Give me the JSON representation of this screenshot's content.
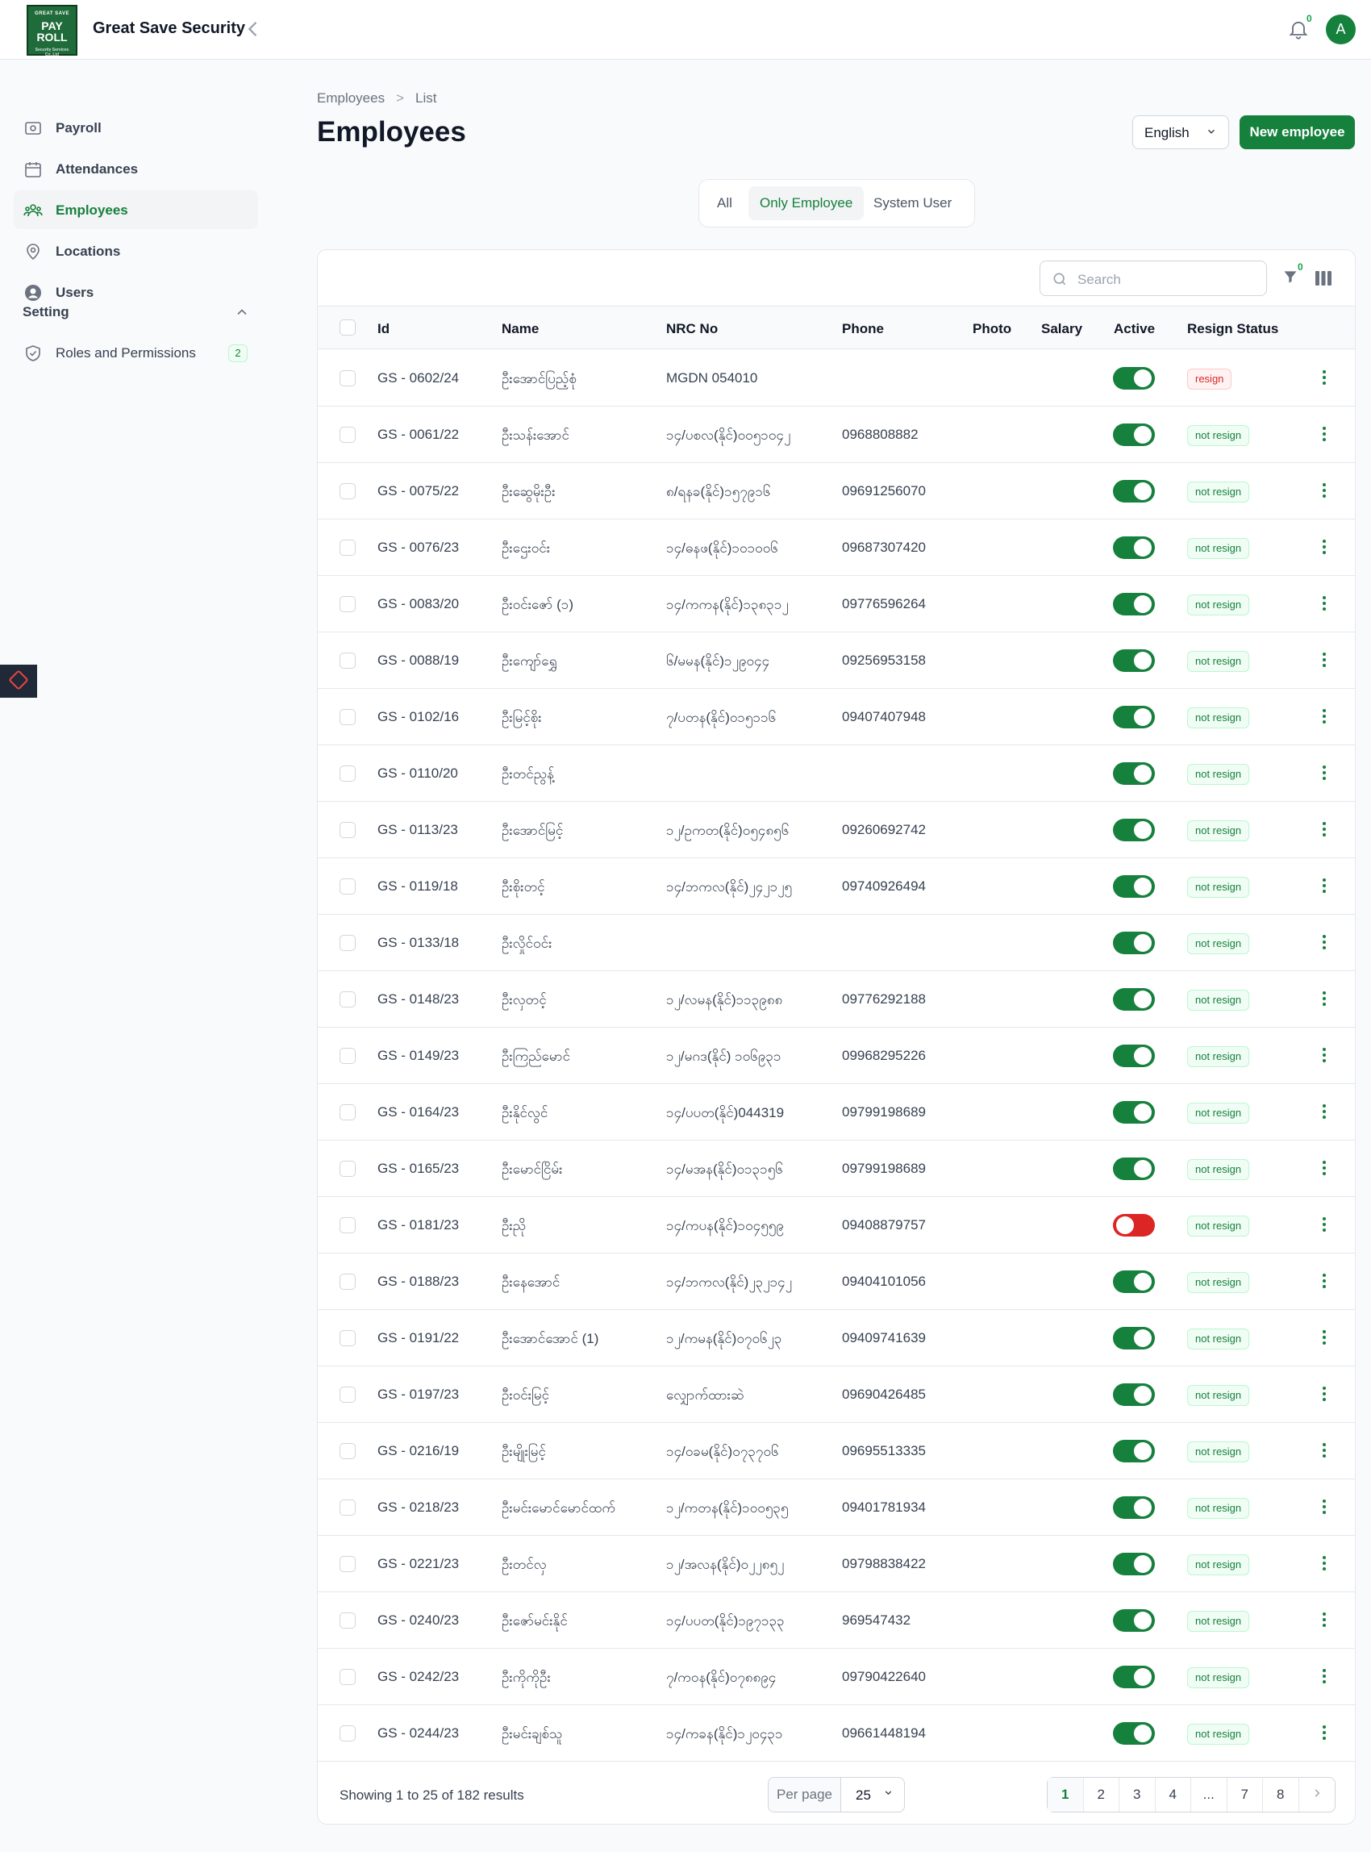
{
  "app": {
    "logo_lines": [
      "GREAT SAVE",
      "PAY",
      "ROLL",
      "Security Services Co.,Ltd"
    ],
    "brand": "Great Save Security",
    "notifications_count": "0",
    "avatar_initial": "A"
  },
  "sidebar": {
    "items": [
      {
        "label": "Payroll",
        "icon": "payroll-icon"
      },
      {
        "label": "Attendances",
        "icon": "calendar-icon"
      },
      {
        "label": "Employees",
        "icon": "users-icon",
        "active": true
      },
      {
        "label": "Locations",
        "icon": "map-pin-icon"
      },
      {
        "label": "Users",
        "icon": "user-circle-icon"
      }
    ],
    "group_label": "Setting",
    "group_items": [
      {
        "label": "Roles and Permissions",
        "icon": "shield-check-icon",
        "badge": "2"
      }
    ]
  },
  "breadcrumb": {
    "items": [
      "Employees",
      "List"
    ],
    "separator": ">"
  },
  "page": {
    "title": "Employees",
    "language": "English",
    "new_button": "New employee"
  },
  "tabs": {
    "items": [
      "All",
      "Only Employee",
      "System User"
    ],
    "active": "Only Employee"
  },
  "table": {
    "search_placeholder": "Search",
    "filter_count": "0",
    "columns": [
      "Id",
      "Name",
      "NRC No",
      "Phone",
      "Photo",
      "Salary",
      "Active",
      "Resign Status"
    ],
    "rows": [
      {
        "id": "GS - 0602/24",
        "name": "ဦးအောင်ပြည့်စုံ",
        "nrc": "MGDN 054010",
        "phone": "",
        "active": true,
        "status": "resign"
      },
      {
        "id": "GS - 0061/22",
        "name": "ဦးသန်းအောင်",
        "nrc": "၁၄/ပစလ(နိုင်)၀၀၅၁၀၄၂",
        "phone": "0968808882",
        "active": true,
        "status": "not resign"
      },
      {
        "id": "GS - 0075/22",
        "name": "ဦးဆွေမိုးဦး",
        "nrc": "၈/ရနခ(နိုင်)၁၅၇၉၁၆",
        "phone": "09691256070",
        "active": true,
        "status": "not resign"
      },
      {
        "id": "GS - 0076/23",
        "name": "ဦးဌေးဝင်း",
        "nrc": "၁၄/ဓနဖ(နိုင်)၁၀၁၀၀၆",
        "phone": "09687307420",
        "active": true,
        "status": "not resign"
      },
      {
        "id": "GS - 0083/20",
        "name": "ဦးဝင်းဇော် (၁)",
        "nrc": "၁၄/ကကန(နိုင်)၁၃၈၃၁၂",
        "phone": "09776596264",
        "active": true,
        "status": "not resign"
      },
      {
        "id": "GS - 0088/19",
        "name": "ဦးကျော်ရွှေ",
        "nrc": "၆/မမန(နိုင်)၁၂၉၀၄၄",
        "phone": "09256953158",
        "active": true,
        "status": "not resign"
      },
      {
        "id": "GS - 0102/16",
        "name": "ဦးမြင့်စိုး",
        "nrc": "၇/ပတန(နိုင်)၀၁၅၁၁၆",
        "phone": "09407407948",
        "active": true,
        "status": "not resign"
      },
      {
        "id": "GS - 0110/20",
        "name": "ဦးတင်ညွန့်",
        "nrc": "",
        "phone": "",
        "active": true,
        "status": "not resign"
      },
      {
        "id": "GS - 0113/23",
        "name": "ဦးအောင်မြင့်",
        "nrc": "၁၂/ဥကတ(နိုင်)၀၅၄၈၅၆",
        "phone": "09260692742",
        "active": true,
        "status": "not resign"
      },
      {
        "id": "GS - 0119/18",
        "name": "ဦးစိုးတင့်",
        "nrc": "၁၄/ဘကလ(နိုင်)၂၄၂၁၂၅",
        "phone": "09740926494",
        "active": true,
        "status": "not resign"
      },
      {
        "id": "GS - 0133/18",
        "name": "ဦးလှိုင်ဝင်း",
        "nrc": "",
        "phone": "",
        "active": true,
        "status": "not resign"
      },
      {
        "id": "GS - 0148/23",
        "name": "ဦးလှတင့်",
        "nrc": "၁၂/လမန(နိုင်)၁၁၃၉၈၈",
        "phone": "09776292188",
        "active": true,
        "status": "not resign"
      },
      {
        "id": "GS - 0149/23",
        "name": "ဦးကြည်မောင်",
        "nrc": "၁၂/မဂဒ(နိုင်) ၁၀၆၉၃၁",
        "phone": "09968295226",
        "active": true,
        "status": "not resign"
      },
      {
        "id": "GS - 0164/23",
        "name": "ဦးနိုင်လွင်",
        "nrc": "၁၄/ပပတ(နိုင်)044319",
        "phone": "09799198689",
        "active": true,
        "status": "not resign"
      },
      {
        "id": "GS - 0165/23",
        "name": "ဦးမောင်ငြိမ်း",
        "nrc": "၁၄/မအန(နိုင်)၀၁၃၁၅၆",
        "phone": "09799198689",
        "active": true,
        "status": "not resign"
      },
      {
        "id": "GS - 0181/23",
        "name": "ဦးညို",
        "nrc": "၁၄/ကပန(နိုင်)၁၀၄၅၅၉",
        "phone": "09408879757",
        "active": false,
        "status": "not resign"
      },
      {
        "id": "GS - 0188/23",
        "name": "ဦးနေအောင်",
        "nrc": "၁၄/ဘကလ(နိုင်)၂၃၂၁၄၂",
        "phone": "09404101056",
        "active": true,
        "status": "not resign"
      },
      {
        "id": "GS - 0191/22",
        "name": "ဦးအောင်အောင် (1)",
        "nrc": "၁၂/ကမန(နိုင်)၀၇၀၆၂၃",
        "phone": "09409741639",
        "active": true,
        "status": "not resign"
      },
      {
        "id": "GS - 0197/23",
        "name": "ဦးဝင်းမြင့်",
        "nrc": "လျှောက်ထားဆဲ",
        "phone": "09690426485",
        "active": true,
        "status": "not resign"
      },
      {
        "id": "GS - 0216/19",
        "name": "ဦးမျိုးမြင့်",
        "nrc": "၁၄/ဝခမ(နိုင်)၀၇၃၇၀၆",
        "phone": "09695513335",
        "active": true,
        "status": "not resign"
      },
      {
        "id": "GS - 0218/23",
        "name": "ဦးမင်းမောင်မောင်ထက်",
        "nrc": "၁၂/ကတန(နိုင်)၁၀၀၅၃၅",
        "phone": "09401781934",
        "active": true,
        "status": "not resign"
      },
      {
        "id": "GS - 0221/23",
        "name": "ဦးတင်လှ",
        "nrc": "၁၂/အလန(နိုင်)၀၂၂၈၅၂",
        "phone": "09798838422",
        "active": true,
        "status": "not resign"
      },
      {
        "id": "GS - 0240/23",
        "name": "ဦးဇော်မင်းနိုင်",
        "nrc": "၁၄/ပပတ(နိုင်)၁၉၇၁၃၃",
        "phone": "969547432",
        "active": true,
        "status": "not resign"
      },
      {
        "id": "GS - 0242/23",
        "name": "ဦးကိုကိုဦး",
        "nrc": "၇/ကဝန(နိုင်)၀၇၈၈၉၄",
        "phone": "09790422640",
        "active": true,
        "status": "not resign"
      },
      {
        "id": "GS - 0244/23",
        "name": "ဦးမင်းချစ်သူ",
        "nrc": "၁၄/ကခန(နိုင်)၁၂၀၄၃၁",
        "phone": "09661448194",
        "active": true,
        "status": "not resign"
      }
    ]
  },
  "footer": {
    "showing": "Showing 1 to 25 of 182 results",
    "per_page_label": "Per page",
    "per_page_value": "25",
    "pages": [
      "1",
      "2",
      "3",
      "4",
      "...",
      "7",
      "8"
    ],
    "active_page": "1"
  },
  "colors": {
    "primary": "#16803d",
    "danger": "#dc2626"
  }
}
